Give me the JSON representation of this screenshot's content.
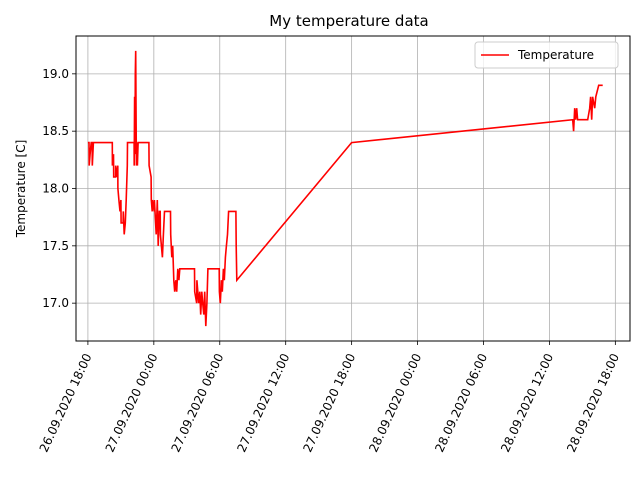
{
  "chart_data": {
    "type": "line",
    "title": "My temperature data",
    "xlabel": "",
    "ylabel": "Temperature [C]",
    "x_tick_labels": [
      "26.09.2020 18:00",
      "27.09.2020 00:00",
      "27.09.2020 06:00",
      "27.09.2020 12:00",
      "27.09.2020 18:00",
      "28.09.2020 00:00",
      "28.09.2020 06:00",
      "28.09.2020 12:00",
      "28.09.2020 18:00"
    ],
    "y_tick_labels": [
      "17.0",
      "17.5",
      "18.0",
      "18.5",
      "19.0"
    ],
    "y_ticks": [
      17.0,
      17.5,
      18.0,
      18.5,
      19.0
    ],
    "xlim": [
      "2020-09-26 16:55",
      "2020-09-28 19:20"
    ],
    "ylim": [
      16.67,
      19.33
    ],
    "grid": true,
    "legend_position": "top-right",
    "series": [
      {
        "name": "Temperature",
        "color": "#ff0000",
        "points": [
          [
            "2020-09-26 18:00",
            18.4
          ],
          [
            "2020-09-26 18:06",
            18.4
          ],
          [
            "2020-09-26 18:07",
            18.2
          ],
          [
            "2020-09-26 18:12",
            18.3
          ],
          [
            "2020-09-26 18:18",
            18.4
          ],
          [
            "2020-09-26 18:23",
            18.4
          ],
          [
            "2020-09-26 18:24",
            18.2
          ],
          [
            "2020-09-26 18:30",
            18.4
          ],
          [
            "2020-09-26 20:13",
            18.4
          ],
          [
            "2020-09-26 20:14",
            18.2
          ],
          [
            "2020-09-26 20:20",
            18.3
          ],
          [
            "2020-09-26 20:21",
            18.1
          ],
          [
            "2020-09-26 20:31",
            18.1
          ],
          [
            "2020-09-26 20:32",
            18.2
          ],
          [
            "2020-09-26 20:38",
            18.1
          ],
          [
            "2020-09-26 20:43",
            18.2
          ],
          [
            "2020-09-26 20:44",
            18.0
          ],
          [
            "2020-09-26 20:49",
            17.9
          ],
          [
            "2020-09-26 20:55",
            17.8
          ],
          [
            "2020-09-26 21:00",
            17.9
          ],
          [
            "2020-09-26 21:01",
            17.7
          ],
          [
            "2020-09-26 21:12",
            17.7
          ],
          [
            "2020-09-26 21:13",
            17.8
          ],
          [
            "2020-09-26 21:18",
            17.6
          ],
          [
            "2020-09-26 21:24",
            17.7
          ],
          [
            "2020-09-26 21:29",
            17.9
          ],
          [
            "2020-09-26 21:35",
            18.2
          ],
          [
            "2020-09-26 21:36",
            18.4
          ],
          [
            "2020-09-26 22:12",
            18.4
          ],
          [
            "2020-09-26 22:13",
            18.2
          ],
          [
            "2020-09-26 22:15",
            18.8
          ],
          [
            "2020-09-26 22:17",
            18.3
          ],
          [
            "2020-09-26 22:19",
            19.0
          ],
          [
            "2020-09-26 22:21",
            19.2
          ],
          [
            "2020-09-26 22:23",
            18.6
          ],
          [
            "2020-09-26 22:25",
            18.2
          ],
          [
            "2020-09-26 22:28",
            18.4
          ],
          [
            "2020-09-26 22:30",
            18.2
          ],
          [
            "2020-09-26 22:34",
            18.4
          ],
          [
            "2020-09-26 23:33",
            18.4
          ],
          [
            "2020-09-26 23:34",
            18.2
          ],
          [
            "2020-09-26 23:45",
            18.1
          ],
          [
            "2020-09-26 23:46",
            17.9
          ],
          [
            "2020-09-26 23:51",
            17.8
          ],
          [
            "2020-09-26 23:52",
            17.9
          ],
          [
            "2020-09-27 00:02",
            17.8
          ],
          [
            "2020-09-27 00:03",
            17.9
          ],
          [
            "2020-09-27 00:13",
            17.6
          ],
          [
            "2020-09-27 00:19",
            17.9
          ],
          [
            "2020-09-27 00:24",
            17.5
          ],
          [
            "2020-09-27 00:30",
            17.8
          ],
          [
            "2020-09-27 00:35",
            17.8
          ],
          [
            "2020-09-27 00:36",
            17.6
          ],
          [
            "2020-09-27 00:47",
            17.4
          ],
          [
            "2020-09-27 00:52",
            17.6
          ],
          [
            "2020-09-27 00:58",
            17.8
          ],
          [
            "2020-09-27 01:31",
            17.8
          ],
          [
            "2020-09-27 01:32",
            17.6
          ],
          [
            "2020-09-27 01:38",
            17.4
          ],
          [
            "2020-09-27 01:43",
            17.5
          ],
          [
            "2020-09-27 01:49",
            17.2
          ],
          [
            "2020-09-27 01:54",
            17.1
          ],
          [
            "2020-09-27 02:00",
            17.2
          ],
          [
            "2020-09-27 02:05",
            17.1
          ],
          [
            "2020-09-27 02:11",
            17.3
          ],
          [
            "2020-09-27 02:17",
            17.2
          ],
          [
            "2020-09-27 02:22",
            17.3
          ],
          [
            "2020-09-27 03:42",
            17.3
          ],
          [
            "2020-09-27 03:43",
            17.1
          ],
          [
            "2020-09-27 03:54",
            17.0
          ],
          [
            "2020-09-27 03:55",
            17.2
          ],
          [
            "2020-09-27 04:05",
            17.0
          ],
          [
            "2020-09-27 04:11",
            17.1
          ],
          [
            "2020-09-27 04:16",
            16.9
          ],
          [
            "2020-09-27 04:22",
            17.1
          ],
          [
            "2020-09-27 04:27",
            17.0
          ],
          [
            "2020-09-27 04:33",
            16.9
          ],
          [
            "2020-09-27 04:38",
            17.1
          ],
          [
            "2020-09-27 04:44",
            16.8
          ],
          [
            "2020-09-27 04:50",
            17.0
          ],
          [
            "2020-09-27 04:55",
            17.3
          ],
          [
            "2020-09-27 05:57",
            17.3
          ],
          [
            "2020-09-27 05:58",
            17.1
          ],
          [
            "2020-09-27 06:03",
            17.0
          ],
          [
            "2020-09-27 06:09",
            17.2
          ],
          [
            "2020-09-27 06:14",
            17.1
          ],
          [
            "2020-09-27 06:20",
            17.3
          ],
          [
            "2020-09-27 06:25",
            17.2
          ],
          [
            "2020-09-27 06:31",
            17.4
          ],
          [
            "2020-09-27 06:36",
            17.5
          ],
          [
            "2020-09-27 06:42",
            17.6
          ],
          [
            "2020-09-27 06:48",
            17.8
          ],
          [
            "2020-09-27 07:28",
            17.8
          ],
          [
            "2020-09-27 07:30",
            17.5
          ],
          [
            "2020-09-27 07:33",
            17.2
          ],
          [
            "2020-09-27 18:00",
            18.4
          ],
          [
            "2020-09-28 14:07",
            18.6
          ],
          [
            "2020-09-28 14:12",
            18.5
          ],
          [
            "2020-09-28 14:18",
            18.7
          ],
          [
            "2020-09-28 14:23",
            18.6
          ],
          [
            "2020-09-28 14:29",
            18.7
          ],
          [
            "2020-09-28 14:34",
            18.6
          ],
          [
            "2020-09-28 15:29",
            18.6
          ],
          [
            "2020-09-28 15:40",
            18.7
          ],
          [
            "2020-09-28 15:45",
            18.8
          ],
          [
            "2020-09-28 15:51",
            18.6
          ],
          [
            "2020-09-28 15:56",
            18.8
          ],
          [
            "2020-09-28 16:07",
            18.7
          ],
          [
            "2020-09-28 16:13",
            18.8
          ],
          [
            "2020-09-28 16:29",
            18.9
          ],
          [
            "2020-09-28 16:51",
            18.9
          ]
        ]
      }
    ]
  }
}
